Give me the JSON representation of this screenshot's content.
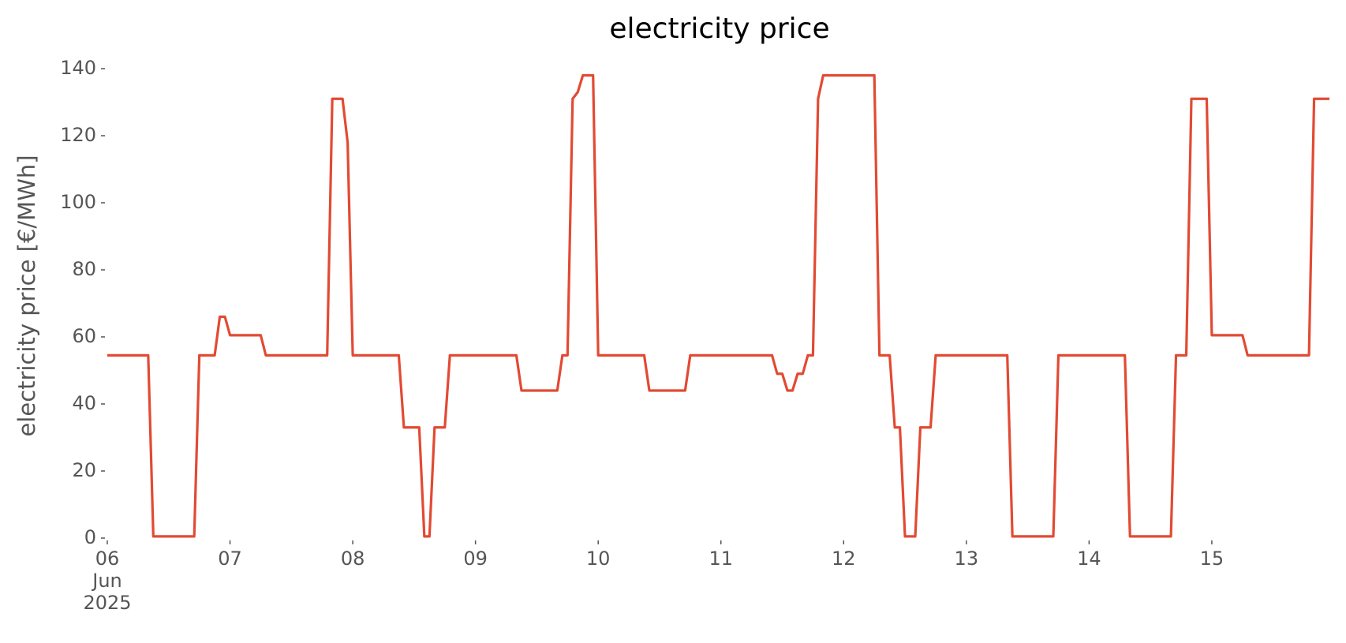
{
  "chart_data": {
    "type": "line",
    "title": "electricity price",
    "ylabel": "electricity price [€/MWh]",
    "x": [
      "2025-06-06T00:00",
      "2025-06-06T08:00",
      "2025-06-06T09:00",
      "2025-06-06T17:00",
      "2025-06-06T18:00",
      "2025-06-06T21:00",
      "2025-06-06T22:00",
      "2025-06-06T23:00",
      "2025-06-07T00:00",
      "2025-06-07T06:00",
      "2025-06-07T07:00",
      "2025-06-07T19:00",
      "2025-06-07T20:00",
      "2025-06-07T22:00",
      "2025-06-07T23:00",
      "2025-06-08T00:00",
      "2025-06-08T09:00",
      "2025-06-08T10:00",
      "2025-06-08T13:00",
      "2025-06-08T14:00",
      "2025-06-08T15:00",
      "2025-06-08T16:00",
      "2025-06-08T18:00",
      "2025-06-08T19:00",
      "2025-06-09T08:00",
      "2025-06-09T09:00",
      "2025-06-09T16:00",
      "2025-06-09T17:00",
      "2025-06-09T18:00",
      "2025-06-09T19:00",
      "2025-06-09T20:00",
      "2025-06-09T21:00",
      "2025-06-09T23:00",
      "2025-06-10T00:00",
      "2025-06-10T09:00",
      "2025-06-10T10:00",
      "2025-06-10T17:00",
      "2025-06-10T18:00",
      "2025-06-11T10:00",
      "2025-06-11T11:00",
      "2025-06-11T12:00",
      "2025-06-11T13:00",
      "2025-06-11T14:00",
      "2025-06-11T15:00",
      "2025-06-11T16:00",
      "2025-06-11T17:00",
      "2025-06-11T18:00",
      "2025-06-11T19:00",
      "2025-06-11T20:00",
      "2025-06-12T06:00",
      "2025-06-12T07:00",
      "2025-06-12T09:00",
      "2025-06-12T10:00",
      "2025-06-12T11:00",
      "2025-06-12T12:00",
      "2025-06-12T14:00",
      "2025-06-12T15:00",
      "2025-06-12T17:00",
      "2025-06-12T18:00",
      "2025-06-13T08:00",
      "2025-06-13T09:00",
      "2025-06-13T17:00",
      "2025-06-13T18:00",
      "2025-06-14T07:00",
      "2025-06-14T08:00",
      "2025-06-14T16:00",
      "2025-06-14T17:00",
      "2025-06-14T19:00",
      "2025-06-14T20:00",
      "2025-06-14T23:00",
      "2025-06-15T00:00",
      "2025-06-15T06:00",
      "2025-06-15T07:00",
      "2025-06-15T19:00",
      "2025-06-15T20:00",
      "2025-06-15T23:00"
    ],
    "series": [
      {
        "name": "electricity price",
        "color": "#E24A33",
        "values": [
          54.5,
          54.5,
          0.5,
          0.5,
          54.5,
          54.5,
          66,
          66,
          60.5,
          60.5,
          54.5,
          54.5,
          131,
          131,
          118,
          54.5,
          54.5,
          33,
          33,
          0.5,
          0.5,
          33,
          33,
          54.5,
          54.5,
          44,
          44,
          54.5,
          54.5,
          131,
          133,
          138,
          138,
          54.5,
          54.5,
          44,
          44,
          54.5,
          54.5,
          49,
          49,
          44,
          44,
          49,
          49,
          54.5,
          54.5,
          131,
          138,
          138,
          54.5,
          54.5,
          33,
          33,
          0.5,
          0.5,
          33,
          33,
          54.5,
          54.5,
          0.5,
          0.5,
          54.5,
          54.5,
          0.5,
          0.5,
          54.5,
          54.5,
          131,
          131,
          60.5,
          60.5,
          54.5,
          54.5,
          131,
          131
        ]
      }
    ],
    "xlim": [
      "2025-06-06T00:00",
      "2025-06-15T23:00"
    ],
    "xticks": [
      {
        "value": "2025-06-06T00:00",
        "label": "06\nJun\n2025"
      },
      {
        "value": "2025-06-07T00:00",
        "label": "07"
      },
      {
        "value": "2025-06-08T00:00",
        "label": "08"
      },
      {
        "value": "2025-06-09T00:00",
        "label": "09"
      },
      {
        "value": "2025-06-10T00:00",
        "label": "10"
      },
      {
        "value": "2025-06-11T00:00",
        "label": "11"
      },
      {
        "value": "2025-06-12T00:00",
        "label": "12"
      },
      {
        "value": "2025-06-13T00:00",
        "label": "13"
      },
      {
        "value": "2025-06-14T00:00",
        "label": "14"
      },
      {
        "value": "2025-06-15T00:00",
        "label": "15"
      }
    ],
    "ylim": [
      0,
      140
    ],
    "yticks": [
      0,
      20,
      40,
      60,
      80,
      100,
      120,
      140
    ],
    "grid": false
  }
}
